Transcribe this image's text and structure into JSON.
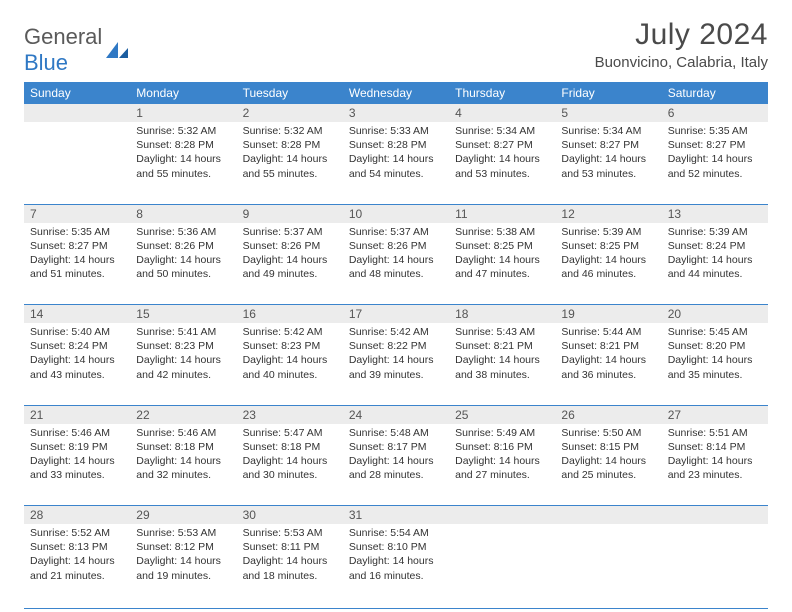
{
  "logo": {
    "text1": "General",
    "text2": "Blue"
  },
  "title": "July 2024",
  "location": "Buonvicino, Calabria, Italy",
  "colors": {
    "header_bg": "#3b84cc",
    "header_text": "#ffffff",
    "daynum_bg": "#ececec",
    "border": "#3b84cc",
    "body_text": "#333333",
    "title_text": "#4a4a4a",
    "logo_gray": "#5a5a5a",
    "logo_blue": "#2f78c4"
  },
  "weekdays": [
    "Sunday",
    "Monday",
    "Tuesday",
    "Wednesday",
    "Thursday",
    "Friday",
    "Saturday"
  ],
  "weeks": [
    {
      "nums": [
        "",
        "1",
        "2",
        "3",
        "4",
        "5",
        "6"
      ],
      "cells": [
        null,
        {
          "sunrise": "5:32 AM",
          "sunset": "8:28 PM",
          "dh": "14",
          "dm": "55"
        },
        {
          "sunrise": "5:32 AM",
          "sunset": "8:28 PM",
          "dh": "14",
          "dm": "55"
        },
        {
          "sunrise": "5:33 AM",
          "sunset": "8:28 PM",
          "dh": "14",
          "dm": "54"
        },
        {
          "sunrise": "5:34 AM",
          "sunset": "8:27 PM",
          "dh": "14",
          "dm": "53"
        },
        {
          "sunrise": "5:34 AM",
          "sunset": "8:27 PM",
          "dh": "14",
          "dm": "53"
        },
        {
          "sunrise": "5:35 AM",
          "sunset": "8:27 PM",
          "dh": "14",
          "dm": "52"
        }
      ]
    },
    {
      "nums": [
        "7",
        "8",
        "9",
        "10",
        "11",
        "12",
        "13"
      ],
      "cells": [
        {
          "sunrise": "5:35 AM",
          "sunset": "8:27 PM",
          "dh": "14",
          "dm": "51"
        },
        {
          "sunrise": "5:36 AM",
          "sunset": "8:26 PM",
          "dh": "14",
          "dm": "50"
        },
        {
          "sunrise": "5:37 AM",
          "sunset": "8:26 PM",
          "dh": "14",
          "dm": "49"
        },
        {
          "sunrise": "5:37 AM",
          "sunset": "8:26 PM",
          "dh": "14",
          "dm": "48"
        },
        {
          "sunrise": "5:38 AM",
          "sunset": "8:25 PM",
          "dh": "14",
          "dm": "47"
        },
        {
          "sunrise": "5:39 AM",
          "sunset": "8:25 PM",
          "dh": "14",
          "dm": "46"
        },
        {
          "sunrise": "5:39 AM",
          "sunset": "8:24 PM",
          "dh": "14",
          "dm": "44"
        }
      ]
    },
    {
      "nums": [
        "14",
        "15",
        "16",
        "17",
        "18",
        "19",
        "20"
      ],
      "cells": [
        {
          "sunrise": "5:40 AM",
          "sunset": "8:24 PM",
          "dh": "14",
          "dm": "43"
        },
        {
          "sunrise": "5:41 AM",
          "sunset": "8:23 PM",
          "dh": "14",
          "dm": "42"
        },
        {
          "sunrise": "5:42 AM",
          "sunset": "8:23 PM",
          "dh": "14",
          "dm": "40"
        },
        {
          "sunrise": "5:42 AM",
          "sunset": "8:22 PM",
          "dh": "14",
          "dm": "39"
        },
        {
          "sunrise": "5:43 AM",
          "sunset": "8:21 PM",
          "dh": "14",
          "dm": "38"
        },
        {
          "sunrise": "5:44 AM",
          "sunset": "8:21 PM",
          "dh": "14",
          "dm": "36"
        },
        {
          "sunrise": "5:45 AM",
          "sunset": "8:20 PM",
          "dh": "14",
          "dm": "35"
        }
      ]
    },
    {
      "nums": [
        "21",
        "22",
        "23",
        "24",
        "25",
        "26",
        "27"
      ],
      "cells": [
        {
          "sunrise": "5:46 AM",
          "sunset": "8:19 PM",
          "dh": "14",
          "dm": "33"
        },
        {
          "sunrise": "5:46 AM",
          "sunset": "8:18 PM",
          "dh": "14",
          "dm": "32"
        },
        {
          "sunrise": "5:47 AM",
          "sunset": "8:18 PM",
          "dh": "14",
          "dm": "30"
        },
        {
          "sunrise": "5:48 AM",
          "sunset": "8:17 PM",
          "dh": "14",
          "dm": "28"
        },
        {
          "sunrise": "5:49 AM",
          "sunset": "8:16 PM",
          "dh": "14",
          "dm": "27"
        },
        {
          "sunrise": "5:50 AM",
          "sunset": "8:15 PM",
          "dh": "14",
          "dm": "25"
        },
        {
          "sunrise": "5:51 AM",
          "sunset": "8:14 PM",
          "dh": "14",
          "dm": "23"
        }
      ]
    },
    {
      "nums": [
        "28",
        "29",
        "30",
        "31",
        "",
        "",
        ""
      ],
      "cells": [
        {
          "sunrise": "5:52 AM",
          "sunset": "8:13 PM",
          "dh": "14",
          "dm": "21"
        },
        {
          "sunrise": "5:53 AM",
          "sunset": "8:12 PM",
          "dh": "14",
          "dm": "19"
        },
        {
          "sunrise": "5:53 AM",
          "sunset": "8:11 PM",
          "dh": "14",
          "dm": "18"
        },
        {
          "sunrise": "5:54 AM",
          "sunset": "8:10 PM",
          "dh": "14",
          "dm": "16"
        },
        null,
        null,
        null
      ]
    }
  ]
}
